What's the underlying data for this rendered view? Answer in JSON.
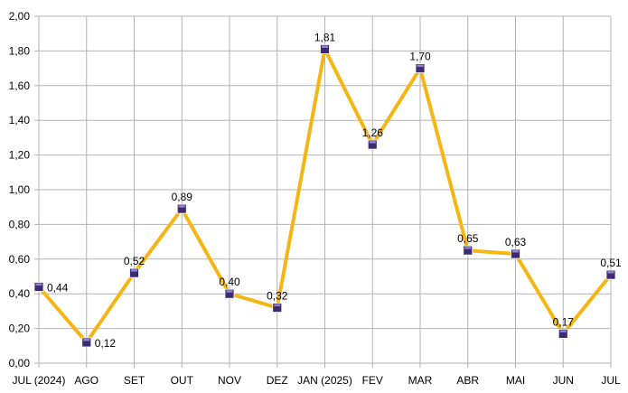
{
  "chart_data": {
    "type": "line",
    "title": "",
    "xlabel": "",
    "ylabel": "",
    "categories": [
      "JUL (2024)",
      "AGO",
      "SET",
      "OUT",
      "NOV",
      "DEZ",
      "JAN (2025)",
      "FEV",
      "MAR",
      "ABR",
      "MAI",
      "JUN",
      "JUL"
    ],
    "series": [
      {
        "values": [
          0.44,
          0.12,
          0.52,
          0.89,
          0.4,
          0.32,
          1.81,
          1.26,
          1.7,
          0.65,
          0.63,
          0.17,
          0.51
        ],
        "labels": [
          "0,44",
          "0,12",
          "0,52",
          "0,89",
          "0,40",
          "0,32",
          "1,81",
          "1,26",
          "1,70",
          "0,65",
          "0,63",
          "0,17",
          "0,51"
        ],
        "color": "#f5b614",
        "marker_color": "#3d2a73"
      }
    ],
    "ylim": [
      0,
      2
    ],
    "yticks": [
      "0,00",
      "0,20",
      "0,40",
      "0,60",
      "0,80",
      "1,00",
      "1,20",
      "1,40",
      "1,60",
      "1,80",
      "2,00"
    ],
    "grid": true,
    "legend": "none"
  }
}
